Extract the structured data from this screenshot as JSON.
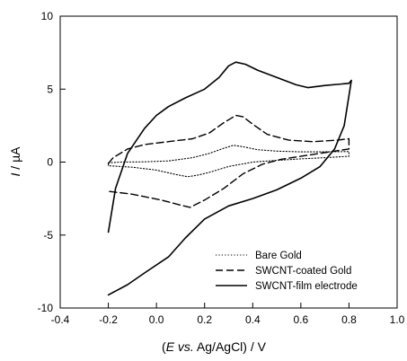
{
  "chart_data": {
    "type": "line",
    "title": "",
    "xlabel": "(E vs. Ag/AgCl) / V",
    "xlabel_parts": {
      "open": "(",
      "italic": "E vs.",
      "rest": " Ag/AgCl) / V"
    },
    "ylabel": "I / µA",
    "ylabel_parts": {
      "italic": "I",
      "rest": " / µA"
    },
    "xlim": [
      -0.4,
      1.0
    ],
    "ylim": [
      -10,
      10
    ],
    "xticks": [
      "-0.4",
      "-0.2",
      "0.0",
      "0.2",
      "0.4",
      "0.6",
      "0.8",
      "1.0"
    ],
    "yticks": [
      "-10",
      "-5",
      "0",
      "5",
      "10"
    ],
    "grid": false,
    "legend_position": "bottom-right",
    "series": [
      {
        "name": "Bare Gold",
        "dash": "dotted",
        "color": "#000000",
        "points": [
          [
            -0.2,
            -0.05
          ],
          [
            -0.15,
            0.0
          ],
          [
            -0.05,
            0.02
          ],
          [
            0.05,
            0.08
          ],
          [
            0.15,
            0.3
          ],
          [
            0.22,
            0.6
          ],
          [
            0.28,
            0.95
          ],
          [
            0.32,
            1.15
          ],
          [
            0.36,
            1.05
          ],
          [
            0.42,
            0.85
          ],
          [
            0.5,
            0.75
          ],
          [
            0.6,
            0.7
          ],
          [
            0.7,
            0.7
          ],
          [
            0.8,
            0.72
          ],
          [
            0.8,
            0.4
          ],
          [
            0.7,
            0.3
          ],
          [
            0.6,
            0.22
          ],
          [
            0.5,
            0.12
          ],
          [
            0.4,
            0.0
          ],
          [
            0.3,
            -0.3
          ],
          [
            0.22,
            -0.7
          ],
          [
            0.17,
            -0.9
          ],
          [
            0.13,
            -1.0
          ],
          [
            0.08,
            -0.85
          ],
          [
            0.0,
            -0.55
          ],
          [
            -0.1,
            -0.35
          ],
          [
            -0.2,
            -0.25
          ],
          [
            -0.2,
            -0.05
          ]
        ]
      },
      {
        "name": "SWCNT-coated Gold",
        "dash": "dashed",
        "color": "#000000",
        "points": [
          [
            -0.2,
            -0.1
          ],
          [
            -0.18,
            0.3
          ],
          [
            -0.12,
            0.9
          ],
          [
            -0.05,
            1.2
          ],
          [
            0.05,
            1.4
          ],
          [
            0.15,
            1.6
          ],
          [
            0.22,
            2.0
          ],
          [
            0.28,
            2.7
          ],
          [
            0.33,
            3.2
          ],
          [
            0.36,
            3.1
          ],
          [
            0.4,
            2.6
          ],
          [
            0.46,
            1.9
          ],
          [
            0.55,
            1.5
          ],
          [
            0.65,
            1.4
          ],
          [
            0.75,
            1.5
          ],
          [
            0.8,
            1.6
          ],
          [
            0.8,
            0.9
          ],
          [
            0.72,
            0.7
          ],
          [
            0.62,
            0.45
          ],
          [
            0.52,
            0.2
          ],
          [
            0.44,
            -0.15
          ],
          [
            0.36,
            -0.8
          ],
          [
            0.28,
            -1.8
          ],
          [
            0.2,
            -2.6
          ],
          [
            0.14,
            -3.1
          ],
          [
            0.1,
            -2.95
          ],
          [
            0.02,
            -2.6
          ],
          [
            -0.1,
            -2.2
          ],
          [
            -0.2,
            -2.0
          ]
        ]
      },
      {
        "name": "SWCNT-film electrode",
        "dash": "solid",
        "color": "#000000",
        "points": [
          [
            -0.2,
            -4.8
          ],
          [
            -0.17,
            -1.8
          ],
          [
            -0.12,
            0.6
          ],
          [
            -0.05,
            2.3
          ],
          [
            0.0,
            3.2
          ],
          [
            0.05,
            3.8
          ],
          [
            0.12,
            4.4
          ],
          [
            0.2,
            5.0
          ],
          [
            0.26,
            5.8
          ],
          [
            0.3,
            6.6
          ],
          [
            0.33,
            6.85
          ],
          [
            0.37,
            6.7
          ],
          [
            0.42,
            6.3
          ],
          [
            0.5,
            5.8
          ],
          [
            0.58,
            5.3
          ],
          [
            0.63,
            5.1
          ],
          [
            0.7,
            5.25
          ],
          [
            0.8,
            5.4
          ],
          [
            0.81,
            5.6
          ],
          [
            0.78,
            2.5
          ],
          [
            0.74,
            0.9
          ],
          [
            0.68,
            -0.3
          ],
          [
            0.6,
            -1.1
          ],
          [
            0.5,
            -1.9
          ],
          [
            0.4,
            -2.5
          ],
          [
            0.3,
            -3.0
          ],
          [
            0.2,
            -3.9
          ],
          [
            0.12,
            -5.2
          ],
          [
            0.05,
            -6.5
          ],
          [
            -0.05,
            -7.6
          ],
          [
            -0.12,
            -8.4
          ],
          [
            -0.2,
            -9.1
          ]
        ]
      }
    ]
  }
}
